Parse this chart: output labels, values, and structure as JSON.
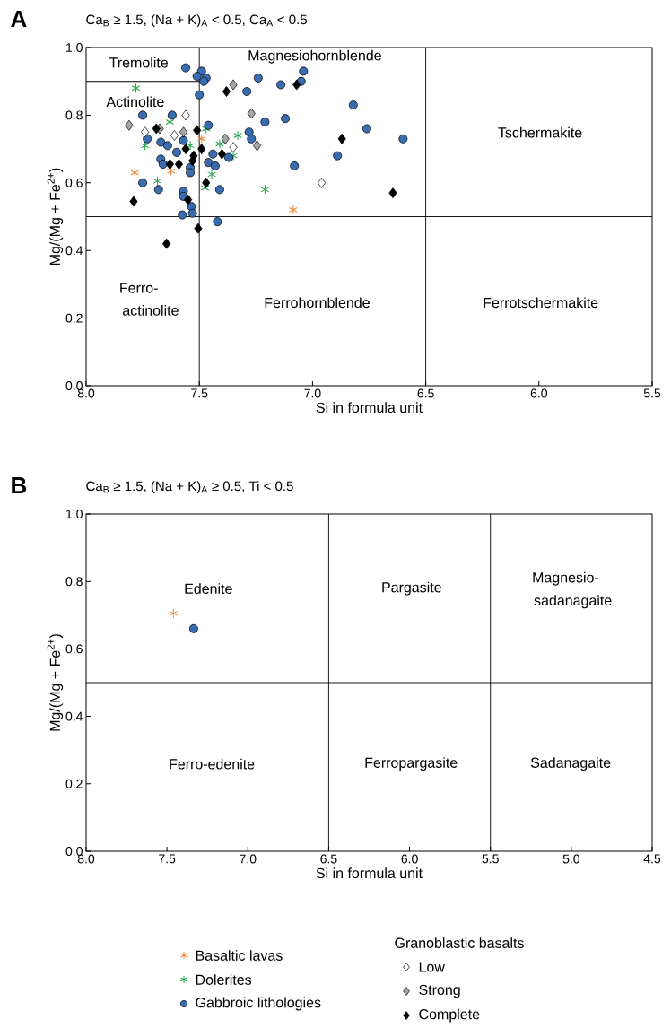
{
  "chart_data": [
    {
      "type": "scatter",
      "title": "A",
      "subtitle": "Ca$_{B}$ ≥ 1.5, (Na + K)$_{A}$ < 0.5, Ca$_{A}$ < 0.5",
      "xlabel": "Si in formula unit",
      "ylabel": "Mg/(Mg + Fe$^{2+}$)",
      "xlim": [
        8.0,
        5.5
      ],
      "ylim": [
        0.0,
        1.0
      ],
      "xticks": [
        {
          "value": 8.0,
          "label": "8.0"
        },
        {
          "value": 7.5,
          "label": "7.5"
        },
        {
          "value": 7.0,
          "label": "7.0"
        },
        {
          "value": 6.5,
          "label": "6.5"
        },
        {
          "value": 6.0,
          "label": "6.0"
        },
        {
          "value": 5.5,
          "label": "5.5"
        }
      ],
      "yticks": [
        {
          "value": 0.0,
          "label": "0.0"
        },
        {
          "value": 0.2,
          "label": "0.2"
        },
        {
          "value": 0.4,
          "label": "0.4"
        },
        {
          "value": 0.6,
          "label": "0.6"
        },
        {
          "value": 0.8,
          "label": "0.8"
        },
        {
          "value": 1.0,
          "label": "1.0"
        }
      ],
      "series": [
        {
          "type": "line",
          "color": "#000000",
          "marker": "none",
          "x": [
            8.0,
            7.5
          ],
          "values": [
            0.9,
            0.9
          ]
        },
        {
          "color": "#e8873a",
          "marker": "cross",
          "x": [
            7.785,
            7.625,
            7.49,
            7.085
          ],
          "values": [
            0.63,
            0.635,
            0.73,
            0.52
          ]
        },
        {
          "color": "#22a347",
          "marker": "cross",
          "x": [
            7.78,
            7.63,
            7.74,
            7.685,
            7.47,
            7.54,
            7.41,
            7.33,
            7.35,
            7.445,
            7.475,
            7.21
          ],
          "values": [
            0.88,
            0.78,
            0.71,
            0.605,
            0.76,
            0.71,
            0.715,
            0.74,
            0.68,
            0.625,
            0.585,
            0.58
          ]
        },
        {
          "color": "#3a6cb0",
          "marker": "circle",
          "x": [
            7.56,
            7.49,
            7.51,
            7.47,
            7.48,
            7.5,
            7.24,
            7.29,
            7.14,
            7.04,
            7.05,
            6.82,
            6.76,
            6.6,
            7.12,
            7.21,
            7.28,
            7.27,
            6.89,
            7.08,
            7.46,
            7.75,
            7.62,
            7.73,
            7.67,
            7.64,
            7.6,
            7.57,
            7.67,
            7.66,
            7.54,
            7.54,
            7.46,
            7.43,
            7.44,
            7.37,
            7.75,
            7.68,
            7.57,
            7.57,
            7.535,
            7.53,
            7.575,
            7.42,
            7.41
          ],
          "values": [
            0.94,
            0.93,
            0.915,
            0.91,
            0.9,
            0.86,
            0.91,
            0.87,
            0.89,
            0.93,
            0.9,
            0.83,
            0.76,
            0.73,
            0.79,
            0.78,
            0.75,
            0.73,
            0.68,
            0.65,
            0.77,
            0.8,
            0.8,
            0.73,
            0.72,
            0.71,
            0.69,
            0.725,
            0.67,
            0.655,
            0.645,
            0.63,
            0.66,
            0.65,
            0.685,
            0.675,
            0.6,
            0.58,
            0.575,
            0.56,
            0.53,
            0.51,
            0.505,
            0.485,
            0.58
          ]
        },
        {
          "color": "#ffffff",
          "marker": "diamond",
          "x": [
            7.56,
            7.74,
            7.61,
            7.35,
            6.96
          ],
          "values": [
            0.8,
            0.75,
            0.74,
            0.705,
            0.6
          ]
        },
        {
          "color": "#a6a6a6",
          "marker": "diamond",
          "x": [
            7.35,
            7.81,
            7.675,
            7.57,
            7.385,
            7.27,
            7.245
          ],
          "values": [
            0.89,
            0.77,
            0.76,
            0.75,
            0.73,
            0.805,
            0.71
          ]
        },
        {
          "color": "#000000",
          "marker": "diamond",
          "x": [
            7.38,
            7.07,
            7.69,
            7.51,
            6.87,
            6.645,
            7.79,
            7.645,
            7.505,
            7.47,
            7.55,
            7.63,
            7.59,
            7.56,
            7.525,
            7.49,
            7.53,
            7.4
          ],
          "values": [
            0.87,
            0.89,
            0.76,
            0.755,
            0.73,
            0.57,
            0.545,
            0.42,
            0.465,
            0.6,
            0.55,
            0.655,
            0.655,
            0.7,
            0.68,
            0.7,
            0.665,
            0.685
          ]
        }
      ],
      "ref_lines": [
        {
          "axis": "x",
          "value": 7.5,
          "color": "#000000"
        },
        {
          "axis": "x",
          "value": 6.5,
          "color": "#000000"
        },
        {
          "axis": "y",
          "value": 0.5,
          "color": "#000000"
        }
      ],
      "annotations": [
        "Tremolite",
        "Actinolite",
        "Magnesiohornblende",
        "Tschermakite",
        "Ferro-",
        "actinolite",
        "Ferrohornblende",
        "Ferrotschermakite"
      ]
    },
    {
      "type": "scatter",
      "title": "B",
      "subtitle": "Ca$_{B}$ ≥ 1.5, (Na + K)$_{A}$ ≥ 0.5, Ti < 0.5",
      "xlabel": "Si in formula unit",
      "ylabel": "Mg/(Mg + Fe$^{2+}$)",
      "xlim": [
        8.0,
        4.5
      ],
      "ylim": [
        0.0,
        1.0
      ],
      "xticks": [
        {
          "value": 8.0,
          "label": "8.0"
        },
        {
          "value": 7.5,
          "label": "7.5"
        },
        {
          "value": 7.0,
          "label": "7.0"
        },
        {
          "value": 6.5,
          "label": "6.5"
        },
        {
          "value": 6.0,
          "label": "6.0"
        },
        {
          "value": 5.5,
          "label": "5.5"
        },
        {
          "value": 5.0,
          "label": "5.0"
        },
        {
          "value": 4.5,
          "label": "4.5"
        }
      ],
      "yticks": [
        {
          "value": 0.0,
          "label": "0.0"
        },
        {
          "value": 0.2,
          "label": "0.2"
        },
        {
          "value": 0.4,
          "label": "0.4"
        },
        {
          "value": 0.6,
          "label": "0.6"
        },
        {
          "value": 0.8,
          "label": "0.8"
        },
        {
          "value": 1.0,
          "label": "1.0"
        }
      ],
      "legend": "bottom",
      "legend_title": "Granoblastic basalts",
      "series": [
        {
          "name": "Basaltic lavas",
          "color": "#e8873a",
          "marker": "cross",
          "x": [
            7.46
          ],
          "values": [
            0.705
          ]
        },
        {
          "name": "Dolerites",
          "color": "#22a347",
          "marker": "cross"
        },
        {
          "name": "Gabbroic lithologies",
          "color": "#3a6cb0",
          "marker": "circle",
          "x": [
            7.335
          ],
          "values": [
            0.66
          ]
        },
        {
          "name": "Low",
          "color": "#ffffff",
          "marker": "diamond"
        },
        {
          "name": "Strong",
          "color": "#a6a6a6",
          "marker": "diamond"
        },
        {
          "name": "Complete",
          "color": "#000000",
          "marker": "diamond"
        }
      ],
      "ref_lines": [
        {
          "axis": "x",
          "value": 6.5,
          "color": "#000000"
        },
        {
          "axis": "x",
          "value": 5.5,
          "color": "#000000"
        },
        {
          "axis": "y",
          "value": 0.5,
          "color": "#000000"
        }
      ],
      "annotations": [
        "Edenite",
        "Pargasite",
        "Magnesio-",
        "sadanagaite",
        "Ferro-edenite",
        "Ferropargasite",
        "Sadanagaite"
      ]
    }
  ]
}
